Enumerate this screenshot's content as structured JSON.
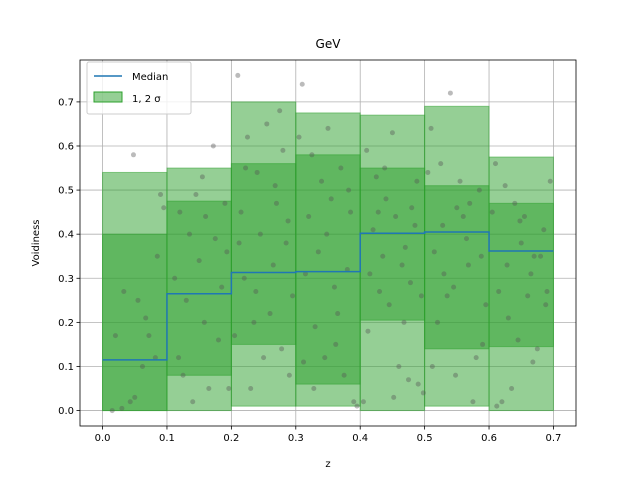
{
  "chart_data": {
    "type": "step",
    "title": "GeV",
    "xlabel": "z",
    "ylabel": "Voidiness",
    "xlim": [
      -0.035,
      0.735
    ],
    "ylim": [
      -0.035,
      0.795
    ],
    "xticks": [
      0.0,
      0.1,
      0.2,
      0.3,
      0.4,
      0.5,
      0.6,
      0.7
    ],
    "xtick_labels": [
      "0.0",
      "0.1",
      "0.2",
      "0.3",
      "0.4",
      "0.5",
      "0.6",
      "0.7"
    ],
    "yticks": [
      0.0,
      0.1,
      0.2,
      0.3,
      0.4,
      0.5,
      0.6,
      0.7
    ],
    "ytick_labels": [
      "0.0",
      "0.1",
      "0.2",
      "0.3",
      "0.4",
      "0.5",
      "0.6",
      "0.7"
    ],
    "grid": true,
    "legend": {
      "placement": "top-left",
      "median_label": "Median",
      "band_label": "1, 2 σ"
    },
    "colors": {
      "median": "#1f77b4",
      "band": "#2ca02c",
      "points": "#555555"
    },
    "bins": [
      {
        "x0": 0.0,
        "x1": 0.1,
        "median": 0.115,
        "sigma1": [
          0.0,
          0.4
        ],
        "sigma2": [
          0.0,
          0.54
        ]
      },
      {
        "x0": 0.1,
        "x1": 0.2,
        "median": 0.265,
        "sigma1": [
          0.08,
          0.475
        ],
        "sigma2": [
          0.0,
          0.55
        ]
      },
      {
        "x0": 0.2,
        "x1": 0.3,
        "median": 0.313,
        "sigma1": [
          0.15,
          0.56
        ],
        "sigma2": [
          0.01,
          0.7
        ]
      },
      {
        "x0": 0.3,
        "x1": 0.4,
        "median": 0.315,
        "sigma1": [
          0.06,
          0.58
        ],
        "sigma2": [
          0.01,
          0.675
        ]
      },
      {
        "x0": 0.4,
        "x1": 0.5,
        "median": 0.402,
        "sigma1": [
          0.205,
          0.55
        ],
        "sigma2": [
          0.0,
          0.67
        ]
      },
      {
        "x0": 0.5,
        "x1": 0.6,
        "median": 0.405,
        "sigma1": [
          0.14,
          0.51
        ],
        "sigma2": [
          0.01,
          0.69
        ]
      },
      {
        "x0": 0.6,
        "x1": 0.7,
        "median": 0.362,
        "sigma1": [
          0.145,
          0.47
        ],
        "sigma2": [
          0.0,
          0.575
        ]
      }
    ],
    "points": [
      [
        0.048,
        0.58
      ],
      [
        0.033,
        0.27
      ],
      [
        0.055,
        0.25
      ],
      [
        0.072,
        0.17
      ],
      [
        0.02,
        0.17
      ],
      [
        0.085,
        0.35
      ],
      [
        0.062,
        0.1
      ],
      [
        0.043,
        0.02
      ],
      [
        0.05,
        0.03
      ],
      [
        0.015,
        0.0
      ],
      [
        0.03,
        0.005
      ],
      [
        0.095,
        0.46
      ],
      [
        0.082,
        0.12
      ],
      [
        0.067,
        0.21
      ],
      [
        0.09,
        0.49
      ],
      [
        0.12,
        0.45
      ],
      [
        0.135,
        0.4
      ],
      [
        0.15,
        0.34
      ],
      [
        0.16,
        0.44
      ],
      [
        0.175,
        0.39
      ],
      [
        0.19,
        0.47
      ],
      [
        0.125,
        0.08
      ],
      [
        0.14,
        0.02
      ],
      [
        0.165,
        0.05
      ],
      [
        0.18,
        0.16
      ],
      [
        0.155,
        0.53
      ],
      [
        0.13,
        0.25
      ],
      [
        0.145,
        0.49
      ],
      [
        0.185,
        0.28
      ],
      [
        0.112,
        0.3
      ],
      [
        0.172,
        0.6
      ],
      [
        0.196,
        0.05
      ],
      [
        0.158,
        0.2
      ],
      [
        0.118,
        0.12
      ],
      [
        0.193,
        0.36
      ],
      [
        0.21,
        0.76
      ],
      [
        0.225,
        0.62
      ],
      [
        0.24,
        0.54
      ],
      [
        0.255,
        0.65
      ],
      [
        0.27,
        0.47
      ],
      [
        0.285,
        0.38
      ],
      [
        0.22,
        0.3
      ],
      [
        0.235,
        0.2
      ],
      [
        0.25,
        0.12
      ],
      [
        0.265,
        0.33
      ],
      [
        0.28,
        0.59
      ],
      [
        0.295,
        0.26
      ],
      [
        0.215,
        0.45
      ],
      [
        0.245,
        0.4
      ],
      [
        0.26,
        0.22
      ],
      [
        0.275,
        0.68
      ],
      [
        0.29,
        0.08
      ],
      [
        0.205,
        0.17
      ],
      [
        0.23,
        0.05
      ],
      [
        0.268,
        0.51
      ],
      [
        0.212,
        0.38
      ],
      [
        0.288,
        0.43
      ],
      [
        0.238,
        0.27
      ],
      [
        0.278,
        0.14
      ],
      [
        0.222,
        0.55
      ],
      [
        0.31,
        0.74
      ],
      [
        0.325,
        0.58
      ],
      [
        0.34,
        0.52
      ],
      [
        0.355,
        0.48
      ],
      [
        0.37,
        0.55
      ],
      [
        0.385,
        0.45
      ],
      [
        0.315,
        0.31
      ],
      [
        0.33,
        0.19
      ],
      [
        0.345,
        0.12
      ],
      [
        0.36,
        0.28
      ],
      [
        0.375,
        0.08
      ],
      [
        0.39,
        0.02
      ],
      [
        0.32,
        0.44
      ],
      [
        0.335,
        0.36
      ],
      [
        0.35,
        0.64
      ],
      [
        0.365,
        0.22
      ],
      [
        0.38,
        0.32
      ],
      [
        0.395,
        0.01
      ],
      [
        0.305,
        0.62
      ],
      [
        0.328,
        0.05
      ],
      [
        0.348,
        0.4
      ],
      [
        0.362,
        0.15
      ],
      [
        0.382,
        0.5
      ],
      [
        0.312,
        0.11
      ],
      [
        0.41,
        0.59
      ],
      [
        0.425,
        0.53
      ],
      [
        0.44,
        0.48
      ],
      [
        0.455,
        0.44
      ],
      [
        0.47,
        0.37
      ],
      [
        0.485,
        0.42
      ],
      [
        0.415,
        0.31
      ],
      [
        0.43,
        0.27
      ],
      [
        0.445,
        0.24
      ],
      [
        0.46,
        0.1
      ],
      [
        0.475,
        0.07
      ],
      [
        0.49,
        0.06
      ],
      [
        0.42,
        0.41
      ],
      [
        0.435,
        0.35
      ],
      [
        0.45,
        0.63
      ],
      [
        0.465,
        0.33
      ],
      [
        0.48,
        0.46
      ],
      [
        0.495,
        0.26
      ],
      [
        0.405,
        0.02
      ],
      [
        0.438,
        0.55
      ],
      [
        0.468,
        0.2
      ],
      [
        0.488,
        0.52
      ],
      [
        0.412,
        0.18
      ],
      [
        0.452,
        0.03
      ],
      [
        0.428,
        0.45
      ],
      [
        0.478,
        0.29
      ],
      [
        0.498,
        0.04
      ],
      [
        0.51,
        0.64
      ],
      [
        0.525,
        0.56
      ],
      [
        0.54,
        0.72
      ],
      [
        0.555,
        0.52
      ],
      [
        0.57,
        0.47
      ],
      [
        0.585,
        0.5
      ],
      [
        0.515,
        0.36
      ],
      [
        0.53,
        0.31
      ],
      [
        0.545,
        0.28
      ],
      [
        0.56,
        0.44
      ],
      [
        0.575,
        0.02
      ],
      [
        0.59,
        0.15
      ],
      [
        0.52,
        0.2
      ],
      [
        0.535,
        0.26
      ],
      [
        0.55,
        0.46
      ],
      [
        0.565,
        0.39
      ],
      [
        0.58,
        0.12
      ],
      [
        0.595,
        0.24
      ],
      [
        0.505,
        0.54
      ],
      [
        0.528,
        0.42
      ],
      [
        0.548,
        0.08
      ],
      [
        0.568,
        0.33
      ],
      [
        0.588,
        0.35
      ],
      [
        0.512,
        0.1
      ],
      [
        0.61,
        0.56
      ],
      [
        0.625,
        0.51
      ],
      [
        0.64,
        0.47
      ],
      [
        0.655,
        0.44
      ],
      [
        0.67,
        0.35
      ],
      [
        0.685,
        0.41
      ],
      [
        0.615,
        0.27
      ],
      [
        0.63,
        0.21
      ],
      [
        0.645,
        0.16
      ],
      [
        0.66,
        0.26
      ],
      [
        0.675,
        0.14
      ],
      [
        0.69,
        0.27
      ],
      [
        0.62,
        0.02
      ],
      [
        0.635,
        0.05
      ],
      [
        0.65,
        0.38
      ],
      [
        0.665,
        0.31
      ],
      [
        0.68,
        0.35
      ],
      [
        0.695,
        0.52
      ],
      [
        0.605,
        0.45
      ],
      [
        0.628,
        0.33
      ],
      [
        0.648,
        0.43
      ],
      [
        0.668,
        0.11
      ],
      [
        0.688,
        0.24
      ],
      [
        0.612,
        0.01
      ]
    ]
  }
}
